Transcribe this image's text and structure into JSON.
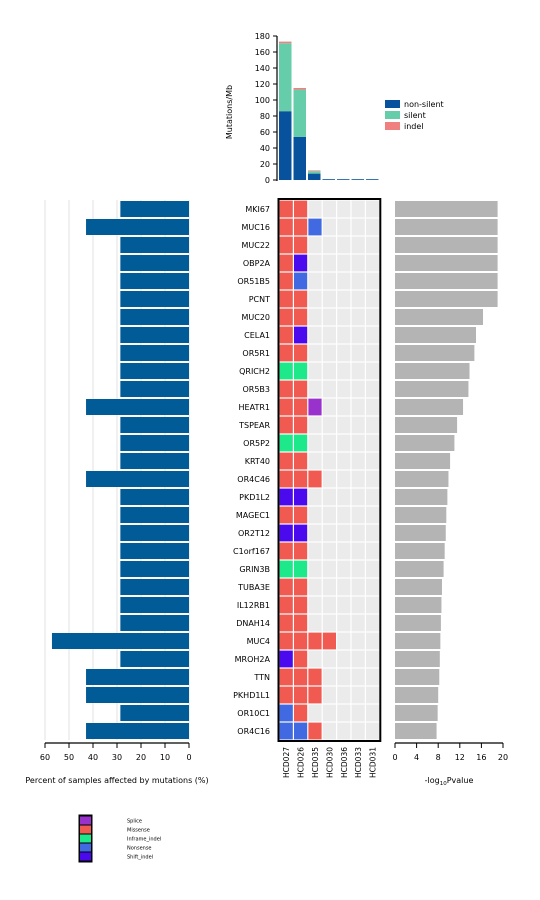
{
  "chart_data": [
    {
      "type": "bar",
      "name": "mutation-burden",
      "ylabel": "Mutations/Mb",
      "ylim": [
        0,
        180
      ],
      "yticks": [
        0,
        20,
        40,
        60,
        80,
        100,
        120,
        140,
        160,
        180
      ],
      "categories": [
        "HCD027",
        "HCD026",
        "HCD035",
        "HCD030",
        "HCD036",
        "HCD033",
        "HCD031"
      ],
      "stacked": true,
      "series": [
        {
          "name": "non-silent",
          "color": "#08519c",
          "values": [
            86,
            54,
            8,
            1,
            1,
            1,
            1
          ]
        },
        {
          "name": "silent",
          "color": "#66cdaa",
          "values": [
            85,
            59,
            3,
            0,
            0,
            0,
            0
          ]
        },
        {
          "name": "indel",
          "color": "#f08080",
          "values": [
            2,
            2,
            1,
            0,
            0,
            0,
            0
          ]
        }
      ],
      "legend_position": "right"
    },
    {
      "type": "bar",
      "name": "percent-affected",
      "orientation": "horizontal",
      "xlabel": "Percent of samples affected by mutations (%)",
      "xlim": [
        60,
        0
      ],
      "xticks": [
        60,
        50,
        40,
        30,
        20,
        10,
        0
      ],
      "color": "#005b96",
      "categories": [
        "MKI67",
        "MUC16",
        "MUC22",
        "OBP2A",
        "OR51B5",
        "PCNT",
        "MUC20",
        "CELA1",
        "OR5R1",
        "QRICH2",
        "OR5B3",
        "HEATR1",
        "TSPEAR",
        "OR5P2",
        "KRT40",
        "OR4C46",
        "PKD1L2",
        "MAGEC1",
        "OR2T12",
        "C1orf167",
        "GRIN3B",
        "TUBA3E",
        "IL12RB1",
        "DNAH14",
        "MUC4",
        "MROH2A",
        "TTN",
        "PKHD1L1",
        "OR10C1",
        "OR4C16"
      ],
      "values": [
        28.6,
        42.9,
        28.6,
        28.6,
        28.6,
        28.6,
        28.6,
        28.6,
        28.6,
        28.6,
        28.6,
        42.9,
        28.6,
        28.6,
        28.6,
        42.9,
        28.6,
        28.6,
        28.6,
        28.6,
        28.6,
        28.6,
        28.6,
        28.6,
        57.1,
        28.6,
        42.9,
        42.9,
        28.6,
        42.9
      ]
    },
    {
      "type": "heatmap",
      "name": "oncoprint",
      "rows": [
        "MKI67",
        "MUC16",
        "MUC22",
        "OBP2A",
        "OR51B5",
        "PCNT",
        "MUC20",
        "CELA1",
        "OR5R1",
        "QRICH2",
        "OR5B3",
        "HEATR1",
        "TSPEAR",
        "OR5P2",
        "KRT40",
        "OR4C46",
        "PKD1L2",
        "MAGEC1",
        "OR2T12",
        "C1orf167",
        "GRIN3B",
        "TUBA3E",
        "IL12RB1",
        "DNAH14",
        "MUC4",
        "MROH2A",
        "TTN",
        "PKHD1L1",
        "OR10C1",
        "OR4C16"
      ],
      "columns": [
        "HCD027",
        "HCD026",
        "HCD035",
        "HCD030",
        "HCD036",
        "HCD033",
        "HCD031"
      ],
      "colors": {
        "Splice": "#9932cc",
        "Missense": "#f05a50",
        "Inframe_indel": "#1de98b",
        "Nonsense": "#4169e1",
        "Shift_indel": "#4b0aee",
        "None": "#ebebeb"
      },
      "cells": [
        [
          "Missense",
          "Missense",
          "",
          "",
          "",
          "",
          ""
        ],
        [
          "Missense",
          "Missense",
          "Nonsense",
          "",
          "",
          "",
          ""
        ],
        [
          "Missense",
          "Missense",
          "",
          "",
          "",
          "",
          ""
        ],
        [
          "Missense",
          "Shift_indel",
          "",
          "",
          "",
          "",
          ""
        ],
        [
          "Missense",
          "Nonsense",
          "",
          "",
          "",
          "",
          ""
        ],
        [
          "Missense",
          "Missense",
          "",
          "",
          "",
          "",
          ""
        ],
        [
          "Missense",
          "Missense",
          "",
          "",
          "",
          "",
          ""
        ],
        [
          "Missense",
          "Shift_indel",
          "",
          "",
          "",
          "",
          ""
        ],
        [
          "Missense",
          "Missense",
          "",
          "",
          "",
          "",
          ""
        ],
        [
          "Inframe_indel",
          "Inframe_indel",
          "",
          "",
          "",
          "",
          ""
        ],
        [
          "Missense",
          "Missense",
          "",
          "",
          "",
          "",
          ""
        ],
        [
          "Missense",
          "Missense",
          "Splice",
          "",
          "",
          "",
          ""
        ],
        [
          "Missense",
          "Missense",
          "",
          "",
          "",
          "",
          ""
        ],
        [
          "Inframe_indel",
          "Inframe_indel",
          "",
          "",
          "",
          "",
          ""
        ],
        [
          "Missense",
          "Missense",
          "",
          "",
          "",
          "",
          ""
        ],
        [
          "Missense",
          "Missense",
          "Missense",
          "",
          "",
          "",
          ""
        ],
        [
          "Shift_indel",
          "Shift_indel",
          "",
          "",
          "",
          "",
          ""
        ],
        [
          "Missense",
          "Missense",
          "",
          "",
          "",
          "",
          ""
        ],
        [
          "Shift_indel",
          "Shift_indel",
          "",
          "",
          "",
          "",
          ""
        ],
        [
          "Missense",
          "Missense",
          "",
          "",
          "",
          "",
          ""
        ],
        [
          "Inframe_indel",
          "Inframe_indel",
          "",
          "",
          "",
          "",
          ""
        ],
        [
          "Missense",
          "Missense",
          "",
          "",
          "",
          "",
          ""
        ],
        [
          "Missense",
          "Missense",
          "",
          "",
          "",
          "",
          ""
        ],
        [
          "Missense",
          "Missense",
          "",
          "",
          "",
          "",
          ""
        ],
        [
          "Missense",
          "Missense",
          "Missense",
          "Missense",
          "",
          "",
          ""
        ],
        [
          "Shift_indel",
          "Missense",
          "",
          "",
          "",
          "",
          ""
        ],
        [
          "Missense",
          "Missense",
          "Missense",
          "",
          "",
          "",
          ""
        ],
        [
          "Missense",
          "Missense",
          "Missense",
          "",
          "",
          "",
          ""
        ],
        [
          "Nonsense",
          "Missense",
          "",
          "",
          "",
          "",
          ""
        ],
        [
          "Nonsense",
          "Nonsense",
          "Missense",
          "",
          "",
          "",
          ""
        ]
      ],
      "legend": [
        "Splice",
        "Missense",
        "Inframe_indel",
        "Nonsense",
        "Shift_indel"
      ]
    },
    {
      "type": "bar",
      "name": "significance",
      "orientation": "horizontal",
      "xlabel": "-log10Pvalue",
      "xlabel_parts": {
        "pre": "-log",
        "sub": "10",
        "post": "Pvalue"
      },
      "xlim": [
        0,
        20
      ],
      "xticks": [
        0,
        4,
        8,
        12,
        16,
        20
      ],
      "color": "#b4b4b4",
      "categories": [
        "MKI67",
        "MUC16",
        "MUC22",
        "OBP2A",
        "OR51B5",
        "PCNT",
        "MUC20",
        "CELA1",
        "OR5R1",
        "QRICH2",
        "OR5B3",
        "HEATR1",
        "TSPEAR",
        "OR5P2",
        "KRT40",
        "OR4C46",
        "PKD1L2",
        "MAGEC1",
        "OR2T12",
        "C1orf167",
        "GRIN3B",
        "TUBA3E",
        "IL12RB1",
        "DNAH14",
        "MUC4",
        "MROH2A",
        "TTN",
        "PKHD1L1",
        "OR10C1",
        "OR4C16"
      ],
      "values": [
        19.0,
        19.0,
        19.0,
        19.0,
        19.0,
        19.0,
        16.3,
        15.0,
        14.7,
        13.8,
        13.6,
        12.6,
        11.5,
        11.0,
        10.2,
        9.9,
        9.7,
        9.5,
        9.4,
        9.2,
        9.0,
        8.7,
        8.6,
        8.5,
        8.4,
        8.3,
        8.2,
        8.0,
        7.9,
        7.7
      ]
    }
  ]
}
